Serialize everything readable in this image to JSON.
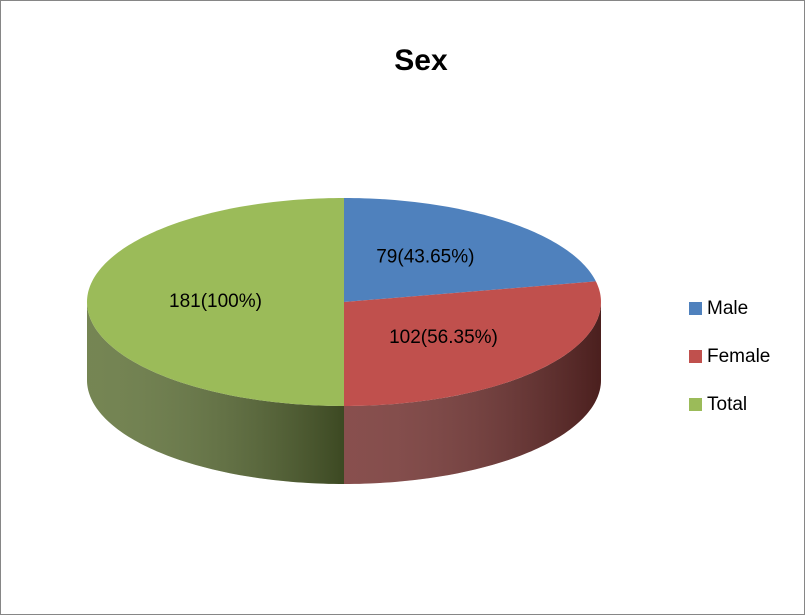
{
  "chart_data": {
    "type": "pie",
    "title": "Sex",
    "categories": [
      "Male",
      "Female",
      "Total"
    ],
    "values": [
      79,
      102,
      181
    ],
    "value_labels": [
      "79(43.65%)",
      "102(56.35%)",
      "181(100%)"
    ],
    "colors": [
      "#4f81bd",
      "#c0504d",
      "#9bbb59"
    ]
  }
}
